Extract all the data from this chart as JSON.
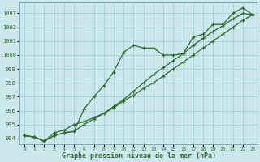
{
  "title": "Graphe pression niveau de la mer (hPa)",
  "background_color": "#cce8ec",
  "grid_color": "#99ccd4",
  "line_color": "#2d6a2d",
  "x_ticks": [
    0,
    1,
    2,
    3,
    4,
    5,
    6,
    7,
    8,
    9,
    10,
    11,
    12,
    13,
    14,
    15,
    16,
    17,
    18,
    19,
    20,
    21,
    22,
    23
  ],
  "y_min": 993.6,
  "y_max": 1003.8,
  "y_ticks": [
    994,
    995,
    996,
    997,
    998,
    999,
    1000,
    1001,
    1002,
    1003
  ],
  "series1": [
    994.2,
    994.1,
    993.8,
    994.2,
    994.4,
    994.5,
    995.0,
    995.4,
    995.8,
    996.3,
    996.8,
    997.4,
    998.0,
    998.6,
    999.1,
    999.6,
    1000.1,
    1000.7,
    1001.2,
    1001.7,
    1002.1,
    1002.6,
    1003.0,
    1002.9
  ],
  "series2": [
    994.2,
    994.1,
    993.8,
    994.2,
    994.4,
    994.5,
    996.1,
    997.0,
    997.8,
    998.8,
    1000.2,
    1000.7,
    1000.5,
    1000.5,
    1000.0,
    1000.0,
    1000.1,
    1001.3,
    1001.5,
    1002.2,
    1002.2,
    1003.0,
    1003.4,
    1002.9
  ],
  "series3": [
    994.2,
    994.1,
    993.8,
    994.4,
    994.6,
    995.0,
    995.2,
    995.5,
    995.8,
    996.2,
    996.7,
    997.1,
    997.6,
    998.0,
    998.5,
    999.0,
    999.5,
    1000.0,
    1000.5,
    1001.0,
    1001.5,
    1002.0,
    1002.5,
    1002.9
  ]
}
